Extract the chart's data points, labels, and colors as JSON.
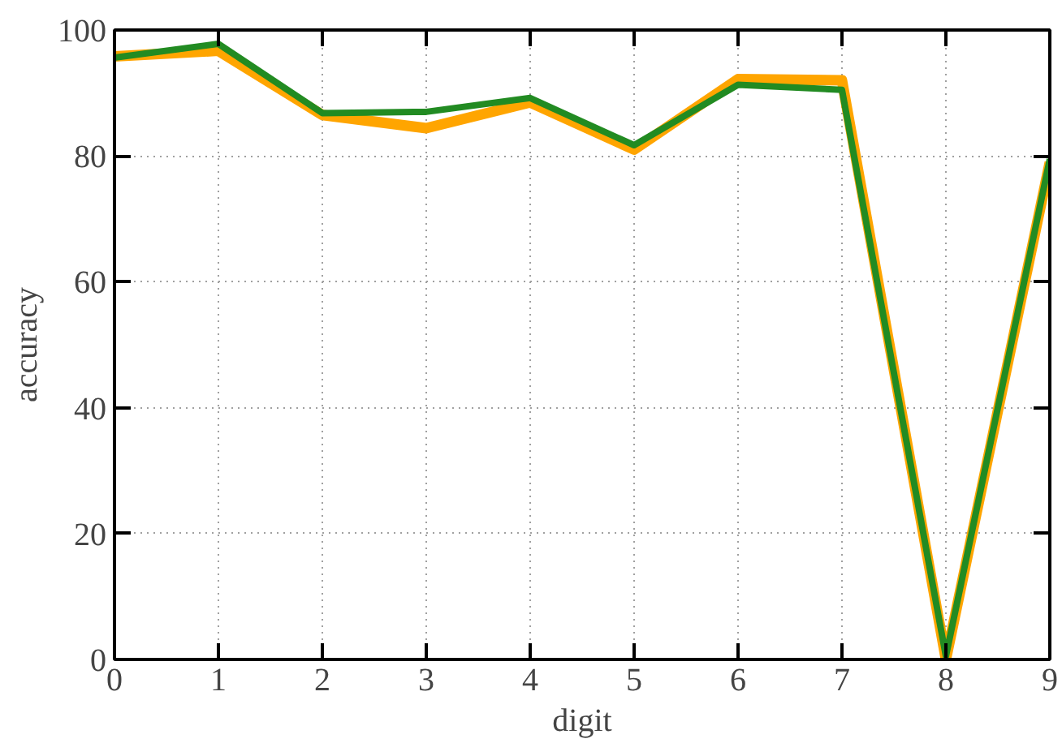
{
  "chart_data": {
    "type": "line",
    "xlabel": "digit",
    "ylabel": "accuracy",
    "x": [
      0,
      1,
      2,
      3,
      4,
      5,
      6,
      7,
      8,
      9
    ],
    "series": [
      {
        "color": "#ffa500",
        "values": [
          95.8,
          96.7,
          86.5,
          84.4,
          88.5,
          81,
          92.2,
          92,
          0,
          79
        ]
      },
      {
        "color": "#228b22",
        "values": [
          95.6,
          97.8,
          86.8,
          87,
          89.2,
          81.7,
          91.3,
          90.5,
          0.5,
          79.5
        ]
      }
    ],
    "xlim": [
      0,
      9
    ],
    "ylim": [
      0,
      100
    ],
    "xticks": [
      0,
      1,
      2,
      3,
      4,
      5,
      6,
      7,
      8,
      9
    ],
    "yticks": [
      0,
      20,
      40,
      60,
      80,
      100
    ],
    "grid": true,
    "line_style": "solid"
  }
}
